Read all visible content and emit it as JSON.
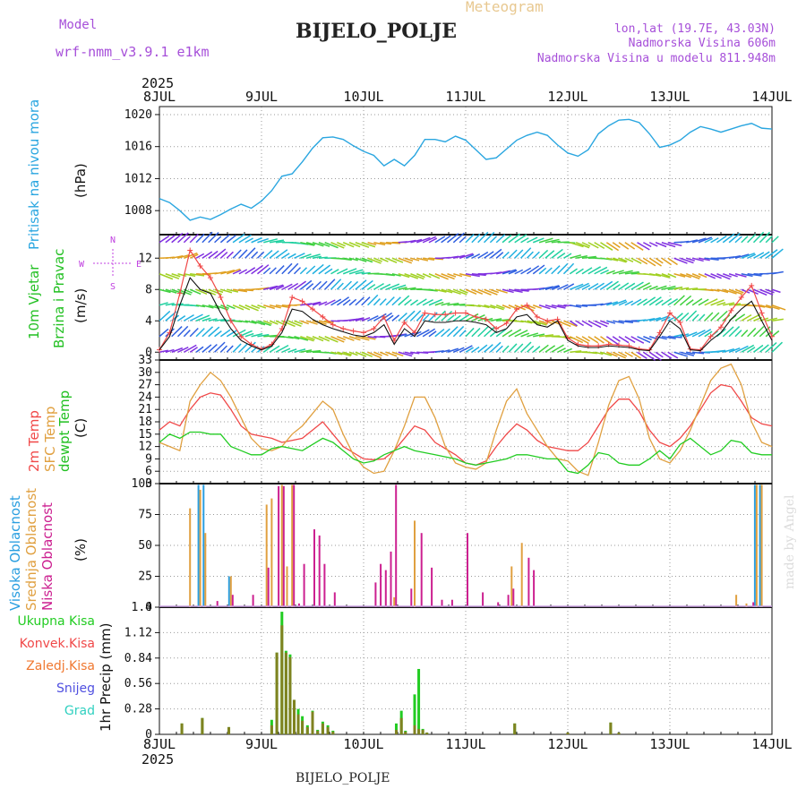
{
  "header": {
    "model_label": "Model",
    "model_name": "wrf-nmm_v3.9.1  e1km",
    "title": "BIJELO_POLJE",
    "meteogram_label": "Meteogram",
    "lonlat": "lon,lat (19.7E, 43.03N)",
    "altitude": "Nadmorska Visina 606m",
    "model_altitude": "Nadmorska Visina u modelu 811.948m",
    "watermark": "made by Angel"
  },
  "footer": {
    "station": "BIJELO_POLJE"
  },
  "time_axis": {
    "year_top": "2025",
    "year_bottom": "2025",
    "labels": [
      "8JUL",
      "9JUL",
      "10JUL",
      "11JUL",
      "12JUL",
      "13JUL",
      "14JUL"
    ],
    "range_days": [
      0,
      6
    ]
  },
  "colors": {
    "pressure": "#2aa6e0",
    "wind_speed_label": "#22c022",
    "direction": "#c040e0",
    "t2m": "#f04848",
    "sfc": "#e0a040",
    "dewpt": "#22cc22",
    "high_cloud": "#2a9ee0",
    "mid_cloud": "#e0a040",
    "low_cloud": "#cc2090",
    "total_precip": "#22cc22",
    "conv_precip": "#f04848",
    "frz_precip": "#f07830",
    "snow": "#5050e0",
    "hail": "#30d0c0"
  },
  "panels": {
    "pressure": {
      "caption": "Pritisak na nivou mora",
      "unit": "(hPa)"
    },
    "wind": {
      "caption1": "10m Vjetar",
      "caption2": "Brzina i Pravac",
      "unit": "(m/s)",
      "compass": {
        "n": "N",
        "s": "S",
        "w": "W",
        "e": "E"
      }
    },
    "temp": {
      "caption_t2m": "2m Temp",
      "caption_sfc": "SFC Temp",
      "caption_dew": "dewpt Temp",
      "unit": "(C)"
    },
    "cloud": {
      "caption_high": "Visoka Oblacnost",
      "caption_mid": "Srednja Oblacnost",
      "caption_low": "Niska Oblacnost",
      "unit": "(%)"
    },
    "precip": {
      "legend_total": "Ukupna Kisa",
      "legend_conv": "Konvek.Kisa",
      "legend_frz": "Zaledj.Kisa",
      "legend_snow": "Snijeg",
      "legend_hail": "Grad",
      "unit": "1hr Precip (mm)"
    }
  },
  "chart_data": [
    {
      "type": "line",
      "name_key": "pressure",
      "ylabel": "(hPa)",
      "ylim": [
        1005,
        1021
      ],
      "yticks": [
        1008,
        1012,
        1016,
        1020
      ],
      "x": [
        0,
        0.1,
        0.2,
        0.3,
        0.4,
        0.5,
        0.6,
        0.7,
        0.8,
        0.9,
        1.0,
        1.1,
        1.2,
        1.3,
        1.4,
        1.5,
        1.6,
        1.7,
        1.8,
        1.9,
        2.0,
        2.1,
        2.2,
        2.3,
        2.4,
        2.5,
        2.6,
        2.7,
        2.8,
        2.9,
        3.0,
        3.1,
        3.2,
        3.3,
        3.4,
        3.5,
        3.6,
        3.7,
        3.8,
        3.9,
        4.0,
        4.1,
        4.2,
        4.3,
        4.4,
        4.5,
        4.6,
        4.7,
        4.8,
        4.9,
        5.0,
        5.1,
        5.2,
        5.3,
        5.4,
        5.5,
        5.6,
        5.7,
        5.8,
        5.9,
        6.0
      ],
      "series": [
        {
          "values": [
            1009.5,
            1009,
            1008,
            1006.8,
            1007.2,
            1006.9,
            1007.5,
            1008.2,
            1008.8,
            1008.3,
            1009.2,
            1010.5,
            1012.3,
            1012.6,
            1014.1,
            1015.8,
            1017.1,
            1017.2,
            1016.9,
            1016.1,
            1015.4,
            1014.9,
            1013.6,
            1014.4,
            1013.6,
            1014.9,
            1016.9,
            1016.9,
            1016.6,
            1017.3,
            1016.8,
            1015.6,
            1014.4,
            1014.6,
            1015.7,
            1016.8,
            1017.4,
            1017.8,
            1017.4,
            1016.2,
            1015.2,
            1014.8,
            1015.6,
            1017.6,
            1018.6,
            1019.3,
            1019.4,
            1019,
            1017.6,
            1015.9,
            1016.2,
            1016.8,
            1017.8,
            1018.5,
            1018.2,
            1017.8,
            1018.2,
            1018.6,
            1018.9,
            1018.3,
            1018.2
          ]
        }
      ]
    },
    {
      "type": "line",
      "name_key": "wind",
      "ylabel": "(m/s)",
      "ylim": [
        -1,
        15
      ],
      "yticks": [
        0,
        4,
        8,
        12
      ],
      "x": [
        0,
        0.1,
        0.2,
        0.3,
        0.4,
        0.5,
        0.6,
        0.7,
        0.8,
        0.9,
        1.0,
        1.1,
        1.2,
        1.3,
        1.4,
        1.5,
        1.6,
        1.7,
        1.8,
        1.9,
        2.0,
        2.1,
        2.2,
        2.3,
        2.4,
        2.5,
        2.6,
        2.7,
        2.8,
        2.9,
        3.0,
        3.1,
        3.2,
        3.3,
        3.4,
        3.5,
        3.6,
        3.7,
        3.8,
        3.9,
        4.0,
        4.1,
        4.2,
        4.3,
        4.4,
        4.5,
        4.6,
        4.7,
        4.8,
        4.9,
        5.0,
        5.1,
        5.2,
        5.3,
        5.4,
        5.5,
        5.6,
        5.7,
        5.8,
        5.9,
        6.0
      ],
      "series": [
        {
          "values": [
            0.3,
            2,
            6,
            9.5,
            8,
            7.5,
            5,
            3,
            1.5,
            0.8,
            0.3,
            0.8,
            2.5,
            5.5,
            5.2,
            4.2,
            3.5,
            3,
            2.6,
            2.2,
            2,
            2.5,
            3.5,
            1,
            3,
            2,
            4,
            3.8,
            3.8,
            4,
            4,
            3.8,
            3.5,
            2.5,
            3,
            4.5,
            4.8,
            3.5,
            3.2,
            4,
            1.5,
            0.8,
            0.6,
            0.6,
            0.8,
            0.7,
            0.6,
            0.3,
            0.2,
            2,
            4,
            3,
            0.3,
            0.2,
            1.5,
            2.5,
            4.2,
            5.5,
            6.5,
            4,
            1.5
          ]
        },
        {
          "values": [
            0.3,
            2.5,
            7.5,
            13,
            11,
            9.5,
            7,
            4,
            2,
            1,
            0.4,
            1,
            3,
            7,
            6.5,
            5.5,
            4.5,
            3.5,
            3,
            2.7,
            2.5,
            3,
            4.5,
            1.5,
            3.8,
            2.5,
            5,
            4.8,
            4.8,
            5,
            5,
            4.5,
            4.2,
            3,
            3.7,
            5.5,
            6,
            4.5,
            4,
            4.2,
            1.8,
            1,
            0.8,
            0.8,
            1,
            0.9,
            0.8,
            0.4,
            0.3,
            2.5,
            5,
            3.8,
            0.4,
            0.3,
            2,
            3.2,
            5.3,
            7,
            8.5,
            5,
            2
          ]
        }
      ]
    },
    {
      "type": "line",
      "name_key": "temp",
      "ylabel": "(C)",
      "ylim": [
        3,
        33
      ],
      "yticks": [
        3,
        6,
        9,
        12,
        15,
        18,
        21,
        24,
        27,
        30,
        33
      ],
      "x": [
        0,
        0.1,
        0.2,
        0.3,
        0.4,
        0.5,
        0.6,
        0.7,
        0.8,
        0.9,
        1.0,
        1.1,
        1.2,
        1.3,
        1.4,
        1.5,
        1.6,
        1.7,
        1.8,
        1.9,
        2.0,
        2.1,
        2.2,
        2.3,
        2.4,
        2.5,
        2.6,
        2.7,
        2.8,
        2.9,
        3.0,
        3.1,
        3.2,
        3.3,
        3.4,
        3.5,
        3.6,
        3.7,
        3.8,
        3.9,
        4.0,
        4.1,
        4.2,
        4.3,
        4.4,
        4.5,
        4.6,
        4.7,
        4.8,
        4.9,
        5.0,
        5.1,
        5.2,
        5.3,
        5.4,
        5.5,
        5.6,
        5.7,
        5.8,
        5.9,
        6.0
      ],
      "series": [
        {
          "values": [
            16,
            18,
            17,
            21,
            24,
            25,
            24.5,
            21,
            17,
            15,
            14.5,
            14,
            13,
            13.5,
            14,
            16,
            18,
            15,
            12,
            10.5,
            9,
            8.8,
            9,
            11,
            14,
            17,
            16,
            13,
            11.5,
            10,
            8,
            7.5,
            8.5,
            12,
            15,
            17.5,
            16,
            13.5,
            12,
            11.5,
            11,
            11,
            13,
            17,
            21,
            23.5,
            23.5,
            20.5,
            16,
            13,
            12,
            14,
            17,
            21,
            25,
            27,
            26.5,
            23,
            19,
            17.5,
            17
          ]
        },
        {
          "values": [
            13,
            12,
            11,
            23,
            27,
            30,
            28,
            24,
            19,
            14,
            11.5,
            11,
            12,
            15,
            17,
            20,
            23,
            21,
            15,
            10,
            7,
            5.5,
            6,
            11,
            17,
            24,
            24,
            19,
            12,
            8,
            7,
            6.5,
            8,
            16,
            23,
            26,
            20,
            16,
            12,
            9,
            8.5,
            6,
            5,
            13,
            22,
            28,
            29,
            23.5,
            14,
            9,
            8,
            11,
            16,
            22,
            28,
            31,
            32,
            27,
            18,
            13,
            12
          ]
        },
        {
          "values": [
            13,
            15,
            14,
            15.5,
            15.5,
            15,
            15,
            12,
            11,
            10,
            10,
            11.5,
            12,
            11.5,
            11,
            12.5,
            14,
            13,
            11,
            9,
            8,
            8.5,
            10,
            11,
            12,
            11,
            10.5,
            10,
            9.5,
            9,
            8,
            7.5,
            8,
            8.5,
            9,
            10,
            10,
            9.5,
            9,
            9,
            6,
            5.5,
            7.5,
            10.5,
            10,
            8,
            7.5,
            7.5,
            9,
            11,
            9,
            12.5,
            14,
            12,
            10,
            11,
            13.5,
            13,
            10.5,
            10,
            10
          ]
        }
      ]
    },
    {
      "type": "bar",
      "name_key": "cloud",
      "ylabel": "(%)",
      "ylim": [
        0,
        100
      ],
      "yticks": [
        0,
        25,
        50,
        75,
        100
      ],
      "x": [
        0.3,
        0.35,
        0.4,
        0.45,
        0.55,
        0.7,
        0.9,
        1.05,
        1.1,
        1.15,
        1.2,
        1.25,
        1.3,
        1.35,
        1.4,
        1.5,
        1.55,
        1.6,
        1.7,
        1.75,
        1.85,
        2.1,
        2.15,
        2.2,
        2.25,
        2.3,
        2.4,
        2.45,
        2.5,
        2.55,
        2.65,
        2.75,
        2.85,
        3.0,
        3.15,
        3.3,
        3.4,
        3.45,
        3.55,
        3.6,
        3.65,
        3.7,
        3.75,
        3.85,
        4.0,
        5.65,
        5.7,
        5.75,
        5.8,
        5.85,
        5.9
      ],
      "series": [
        {
          "name_key": "high",
          "values": [
            0,
            0,
            99,
            99,
            0,
            25,
            0,
            0,
            0,
            0,
            0,
            0,
            0,
            0,
            0,
            0,
            0,
            0,
            0,
            0,
            0,
            0,
            0,
            0,
            0,
            0,
            0,
            0,
            0,
            0,
            0,
            0,
            0,
            0,
            0,
            0,
            0,
            0,
            0,
            0,
            0,
            0,
            0,
            0,
            0,
            0,
            0,
            0,
            0,
            99,
            99
          ]
        },
        {
          "name_key": "mid",
          "values": [
            80,
            0,
            95,
            60,
            0,
            25,
            0,
            83,
            88,
            0,
            99,
            33,
            99,
            0,
            0,
            0,
            0,
            0,
            0,
            0,
            0,
            0,
            0,
            0,
            0,
            8,
            0,
            0,
            70,
            0,
            0,
            0,
            0,
            0,
            0,
            0,
            0,
            33,
            52,
            0,
            0,
            0,
            0,
            0,
            0,
            10,
            0,
            3,
            0,
            99,
            99
          ]
        },
        {
          "name_key": "low",
          "values": [
            0,
            0,
            0,
            0,
            5,
            10,
            10,
            32,
            0,
            98,
            98,
            0,
            99,
            3,
            35,
            63,
            58,
            35,
            12,
            0,
            0,
            20,
            35,
            30,
            45,
            99,
            0,
            15,
            0,
            60,
            32,
            6,
            6,
            60,
            12,
            4,
            10,
            15,
            0,
            40,
            30,
            0,
            0,
            0,
            0,
            0,
            0,
            0,
            4,
            0,
            0
          ]
        }
      ]
    },
    {
      "type": "bar",
      "name_key": "precip",
      "ylabel": "1hr Precip (mm)",
      "ylim": [
        0,
        1.4
      ],
      "yticks": [
        0,
        0.28,
        0.56,
        0.84,
        1.12,
        1.4
      ],
      "x": [
        0.22,
        0.42,
        0.68,
        1.1,
        1.15,
        1.2,
        1.24,
        1.28,
        1.32,
        1.36,
        1.4,
        1.45,
        1.5,
        1.55,
        1.6,
        1.65,
        1.7,
        2.32,
        2.37,
        2.41,
        2.5,
        2.54,
        2.58,
        2.62,
        3.48,
        4.0,
        4.42,
        4.5
      ],
      "series": [
        {
          "name_key": "total",
          "values": [
            0.12,
            0.18,
            0.08,
            0.16,
            0.9,
            1.35,
            0.92,
            0.88,
            0.38,
            0.28,
            0.2,
            0.1,
            0.26,
            0.05,
            0.14,
            0.1,
            0.04,
            0.12,
            0.26,
            0.04,
            0.44,
            0.72,
            0.06,
            0.02,
            0.12,
            0.02,
            0.13,
            0.02
          ]
        },
        {
          "name_key": "conv",
          "values": [
            0.12,
            0.18,
            0.08,
            0.1,
            0.9,
            1.2,
            0.9,
            0.85,
            0.38,
            0.22,
            0.15,
            0.08,
            0.25,
            0.04,
            0.12,
            0.08,
            0.03,
            0.05,
            0.18,
            0.03,
            0.1,
            0.06,
            0.05,
            0.02,
            0.12,
            0.02,
            0.13,
            0.02
          ]
        }
      ]
    }
  ]
}
